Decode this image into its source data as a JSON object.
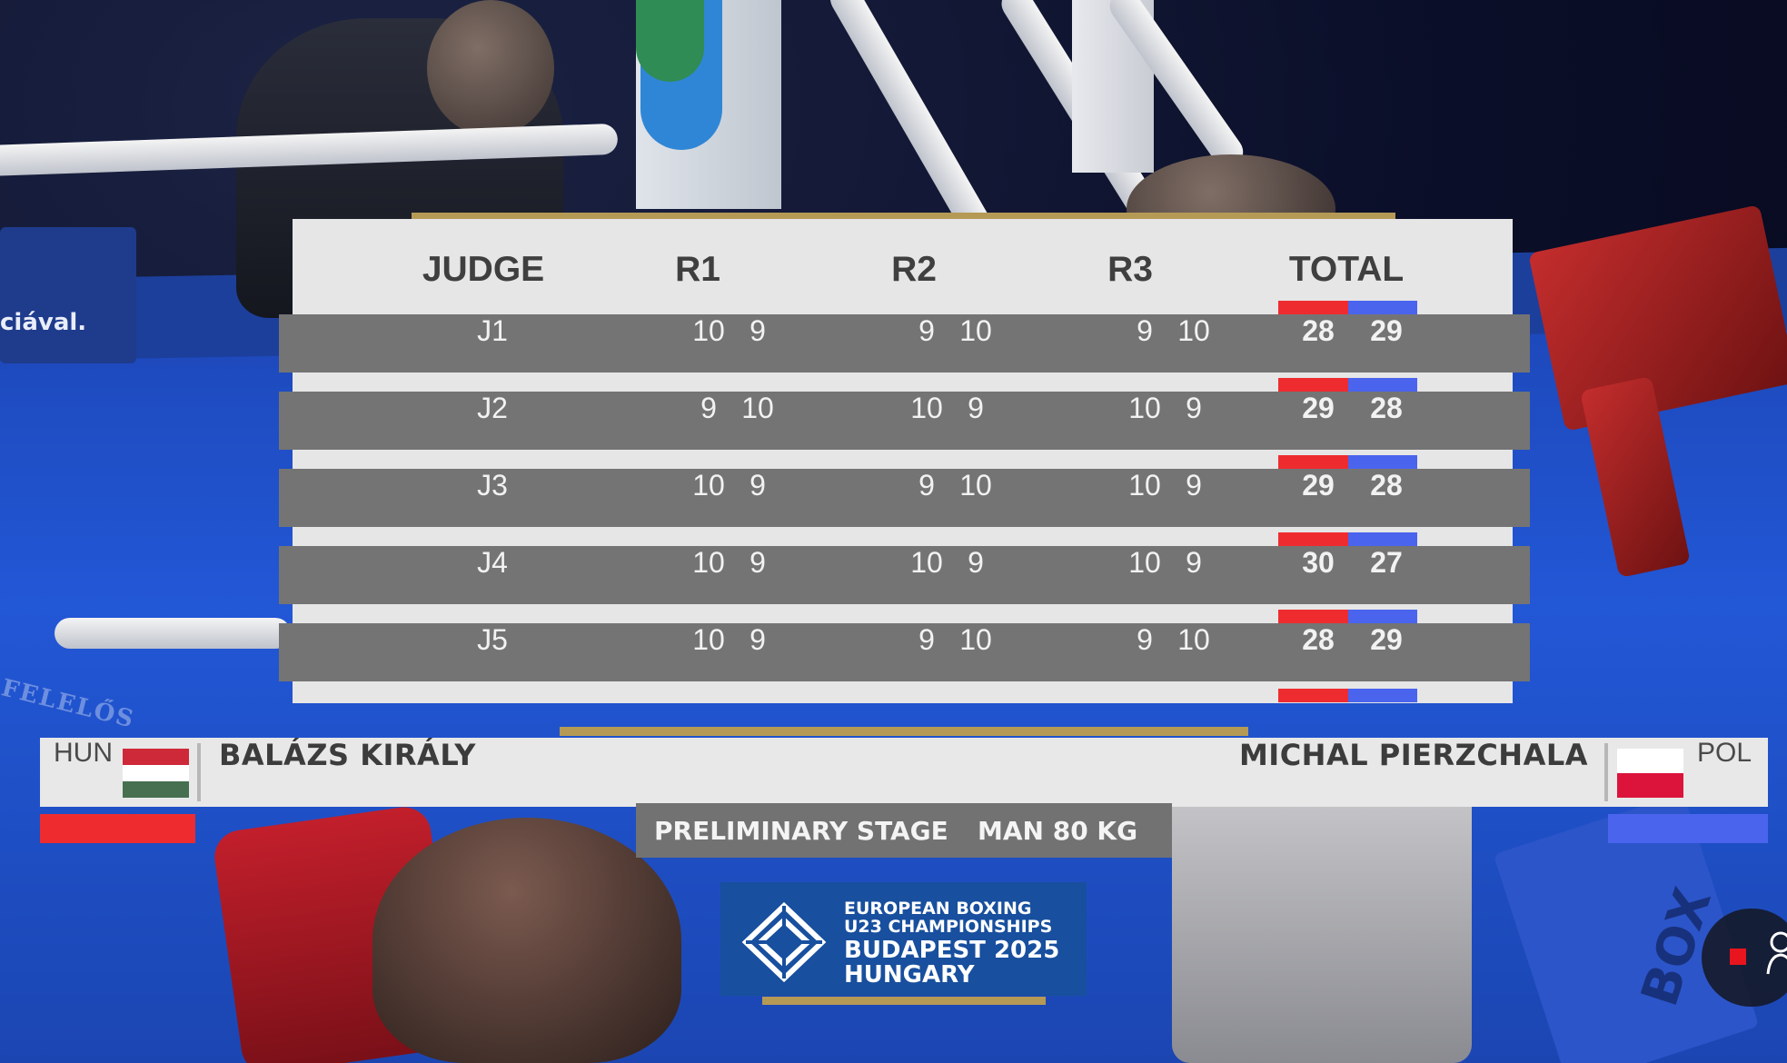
{
  "scoreboard": {
    "headers": {
      "judge": "JUDGE",
      "r1": "R1",
      "r2": "R2",
      "r3": "R3",
      "total": "TOTAL"
    },
    "rows": [
      {
        "judge": "J1",
        "r1": [
          "10",
          "9"
        ],
        "r2": [
          "9",
          "10"
        ],
        "r3": [
          "9",
          "10"
        ],
        "total": [
          "28",
          "29"
        ]
      },
      {
        "judge": "J2",
        "r1": [
          "9",
          "10"
        ],
        "r2": [
          "10",
          "9"
        ],
        "r3": [
          "10",
          "9"
        ],
        "total": [
          "29",
          "28"
        ]
      },
      {
        "judge": "J3",
        "r1": [
          "10",
          "9"
        ],
        "r2": [
          "9",
          "10"
        ],
        "r3": [
          "10",
          "9"
        ],
        "total": [
          "29",
          "28"
        ]
      },
      {
        "judge": "J4",
        "r1": [
          "10",
          "9"
        ],
        "r2": [
          "10",
          "9"
        ],
        "r3": [
          "10",
          "9"
        ],
        "total": [
          "30",
          "27"
        ]
      },
      {
        "judge": "J5",
        "r1": [
          "10",
          "9"
        ],
        "r2": [
          "9",
          "10"
        ],
        "r3": [
          "9",
          "10"
        ],
        "total": [
          "28",
          "29"
        ]
      }
    ]
  },
  "red_corner": {
    "country": "HUN",
    "name": "BALÁZS KIRÁLY",
    "flag_colors": [
      "#ce2939",
      "#ffffff",
      "#477050"
    ],
    "color": "#ee2c30"
  },
  "blue_corner": {
    "country": "POL",
    "name": "MICHAL PIERZCHALA",
    "flag_colors": [
      "#ffffff",
      "#dc143c"
    ],
    "color": "#4a64ee"
  },
  "stage": {
    "stage": "PRELIMINARY STAGE",
    "weight_class": "MAN 80 KG"
  },
  "event_logo": {
    "line1": "EUROPEAN BOXING",
    "line2": "U23 CHAMPIONSHIPS",
    "line3": "BUDAPEST 2025",
    "line4": "HUNGARY"
  },
  "background_text": {
    "sign": "ciával.",
    "floor": "FELELŐS"
  },
  "icons": {
    "record": "record-icon",
    "user": "user-icon"
  }
}
